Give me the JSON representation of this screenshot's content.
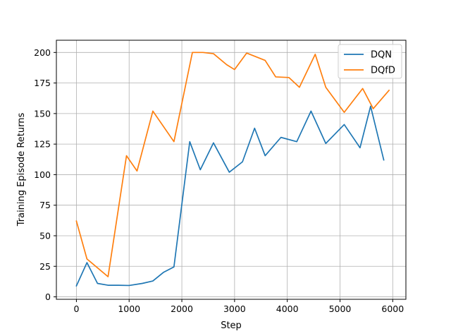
{
  "chart_data": {
    "type": "line",
    "title": "",
    "xlabel": "Step",
    "ylabel": "Training Episode Returns",
    "xlim": [
      -380,
      6250
    ],
    "ylim": [
      -2,
      210
    ],
    "xticks": [
      0,
      1000,
      2000,
      3000,
      4000,
      5000,
      6000
    ],
    "yticks": [
      0,
      25,
      50,
      75,
      100,
      125,
      150,
      175,
      200
    ],
    "grid": true,
    "legend": "top-right",
    "series": [
      {
        "name": "DQN",
        "color": "#1f77b4",
        "x": [
          0,
          200,
          400,
          600,
          800,
          1000,
          1250,
          1450,
          1650,
          1850,
          2150,
          2350,
          2600,
          2900,
          3150,
          3380,
          3580,
          3880,
          4180,
          4450,
          4730,
          5080,
          5380,
          5580,
          5830
        ],
        "y": [
          9,
          28,
          11,
          9.5,
          9.5,
          9.3,
          11,
          13,
          20,
          24.5,
          127,
          104,
          126,
          102,
          110.5,
          138,
          115.5,
          130.5,
          127,
          152,
          125.5,
          141,
          122,
          156,
          112
        ]
      },
      {
        "name": "DQfD",
        "color": "#ff7f0e",
        "x": [
          0,
          200,
          600,
          950,
          1150,
          1450,
          1850,
          2200,
          2400,
          2600,
          2850,
          3000,
          3230,
          3580,
          3780,
          4030,
          4230,
          4530,
          4730,
          5080,
          5430,
          5630,
          5930
        ],
        "y": [
          62,
          31,
          16.5,
          115.5,
          103,
          152,
          127,
          200,
          200,
          199,
          190,
          186,
          199.5,
          193.5,
          180,
          179.5,
          171.5,
          198.5,
          171.5,
          151,
          170.5,
          154,
          169
        ]
      }
    ]
  }
}
